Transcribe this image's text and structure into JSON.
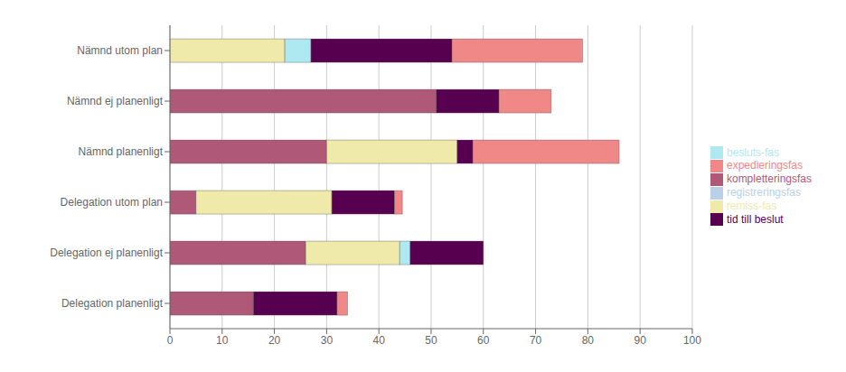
{
  "chart_data": {
    "type": "bar",
    "orientation": "horizontal",
    "stacked": true,
    "categories": [
      "Delegation planenligt",
      "Delegation ej planenligt",
      "Delegation utom plan",
      "Nämnd planenligt",
      "Nämnd ej planenligt",
      "Nämnd utom plan"
    ],
    "series": [
      {
        "name": "registreringsfas",
        "color": "#b8d0e8",
        "values": [
          0,
          0,
          0,
          0,
          0,
          0
        ]
      },
      {
        "name": "kompletteringsfas",
        "color": "#b05878",
        "values": [
          16,
          26,
          5,
          30,
          51,
          0
        ]
      },
      {
        "name": "remiss-fas",
        "color": "#f0eaaa",
        "values": [
          0,
          18,
          26,
          25,
          0,
          22
        ]
      },
      {
        "name": "besluts-fas",
        "color": "#aee8f0",
        "values": [
          0,
          2,
          0,
          0,
          0,
          5
        ]
      },
      {
        "name": "tid till beslut",
        "color": "#580050",
        "values": [
          16,
          14,
          12,
          3,
          12,
          27
        ]
      },
      {
        "name": "expedieringsfas",
        "color": "#f08888",
        "values": [
          2,
          0,
          1.5,
          28,
          10,
          25
        ]
      }
    ],
    "xlim": [
      0,
      100
    ],
    "xticks": [
      0,
      10,
      20,
      30,
      40,
      50,
      60,
      70,
      80,
      90,
      100
    ],
    "grid": true,
    "legend": "right"
  }
}
